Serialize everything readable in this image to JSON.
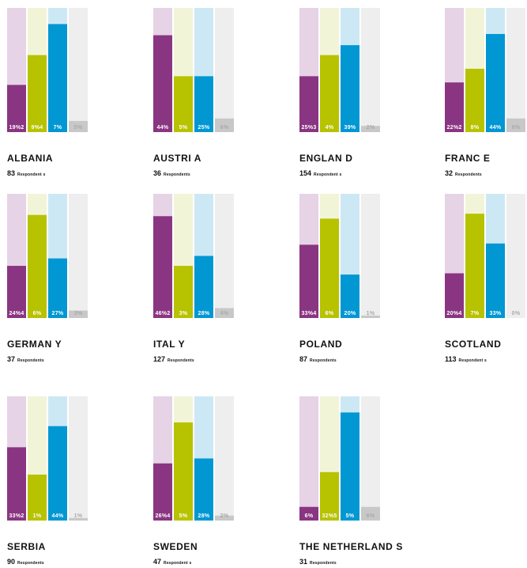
{
  "colors": {
    "series": [
      "#8a3582",
      "#b7c200",
      "#0097d3",
      "#c8c8c8"
    ],
    "series_light": [
      "#e6d3e5",
      "#f2f4d8",
      "#cde8f5",
      "#eeeeee"
    ]
  },
  "chart_data": {
    "type": "bar",
    "ylim": [
      0,
      100
    ],
    "grid": false,
    "legend": "none",
    "panels": [
      {
        "country": "ALBANIA",
        "respondents": "83",
        "respondents_label": "Respondent s",
        "values": [
          38,
          62,
          87,
          9
        ],
        "labels": [
          "19%2",
          "9%4",
          "7%",
          "5%"
        ]
      },
      {
        "country": "AUSTRI A",
        "respondents": "36",
        "respondents_label": "Respondents",
        "values": [
          78,
          45,
          45,
          11
        ],
        "labels": [
          "44%",
          "5%",
          "25%",
          "6%"
        ]
      },
      {
        "country": "ENGLAN D",
        "respondents": "154",
        "respondents_label": "Respondent s",
        "values": [
          45,
          62,
          70,
          5
        ],
        "labels": [
          "25%3",
          "4%",
          "39%",
          "2%"
        ]
      },
      {
        "country": "FRANC E",
        "respondents": "32",
        "respondents_label": "Respondents",
        "values": [
          40,
          51,
          79,
          11
        ],
        "labels": [
          "22%2",
          "8%",
          "44%",
          "6%"
        ]
      },
      {
        "country": "GERMAN Y",
        "respondents": "37",
        "respondents_label": "Respondents",
        "values": [
          42,
          83,
          48,
          6
        ],
        "labels": [
          "24%4",
          "6%",
          "27%",
          "3%"
        ]
      },
      {
        "country": "ITAL Y",
        "respondents": "127",
        "respondents_label": "Respondents",
        "values": [
          82,
          42,
          50,
          8
        ],
        "labels": [
          "46%2",
          "3%",
          "28%",
          "4%"
        ]
      },
      {
        "country": "POLAND",
        "respondents": "87",
        "respondents_label": "Respondents",
        "values": [
          59,
          80,
          35,
          2
        ],
        "labels": [
          "33%4",
          "6%",
          "20%",
          "1%"
        ]
      },
      {
        "country": "SCOTLAND",
        "respondents": "113",
        "respondents_label": "Respondent s",
        "values": [
          36,
          84,
          60,
          0
        ],
        "labels": [
          "20%4",
          "7%",
          "33%",
          "0%"
        ]
      },
      {
        "country": "SERBIA",
        "respondents": "90",
        "respondents_label": "Respondents",
        "values": [
          59,
          37,
          76,
          2
        ],
        "labels": [
          "33%2",
          "1%",
          "44%",
          "1%"
        ]
      },
      {
        "country": "SWEDEN",
        "respondents": "47",
        "respondents_label": "Respondent s",
        "values": [
          46,
          79,
          50,
          4
        ],
        "labels": [
          "26%4",
          "5%",
          "28%",
          "2%"
        ]
      },
      {
        "country": "THE NETHERLAND  S",
        "respondents": "31",
        "respondents_label": "Respondents",
        "values": [
          11,
          39,
          87,
          11
        ],
        "labels": [
          "6%",
          "32%5",
          "5%",
          "6%"
        ]
      }
    ]
  }
}
